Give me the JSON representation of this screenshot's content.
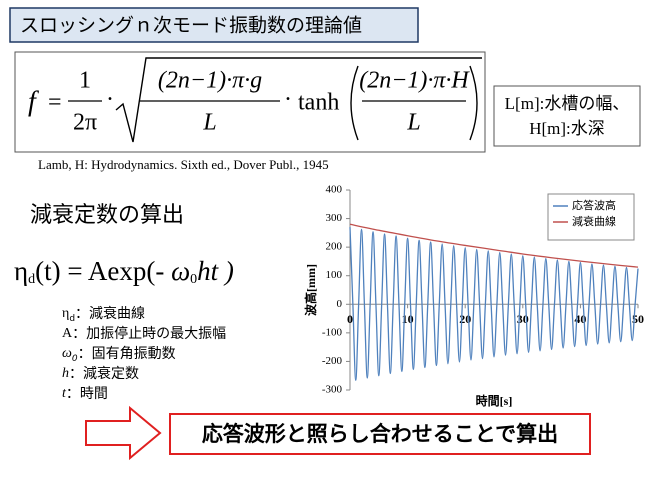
{
  "header": {
    "title": "スロッシングｎ次モード振動数の理論値"
  },
  "formula": {
    "lhs": "f",
    "eq": "=",
    "num1": "1",
    "den1": "2π",
    "dot": "·",
    "num2": "(2n−1)·π·g",
    "den2": "L",
    "tanh": "tanh",
    "num3": "(2n−1)·π·H",
    "den3": "L"
  },
  "side_box": {
    "line1": "L[m]:水槽の幅、",
    "line2": "H[m]:水深"
  },
  "reference": "Lamb, H: Hydrodynamics. Sixth ed., Dover Publ., 1945",
  "section_title": "減衰定数の算出",
  "decay_formula": {
    "eta": "η",
    "sub": "d",
    "middle": "(t) = Aexp(- ",
    "omega": "ω",
    "sub0": "0",
    "tail": "ht )"
  },
  "definitions": [
    {
      "symbol": "η",
      "sub": "d",
      "text": "：減衰曲線"
    },
    {
      "symbol": "A",
      "text": "：加振停止時の最大振幅"
    },
    {
      "symbol": "ω",
      "sub": "0",
      "text": "：固有角振動数"
    },
    {
      "symbol": "h",
      "text": "：減衰定数"
    },
    {
      "symbol": "t",
      "text": "：時間"
    }
  ],
  "conclusion": "応答波形と照らし合わせることで算出",
  "chart_data": {
    "type": "line",
    "xlabel": "時間[s]",
    "ylabel": "波高[mm]",
    "xlim": [
      0,
      50
    ],
    "xticks": [
      0,
      10,
      20,
      30,
      40,
      50
    ],
    "ylim": [
      -300,
      400
    ],
    "yticks": [
      -300,
      -200,
      -100,
      0,
      100,
      200,
      300,
      400
    ],
    "grid": false,
    "legend": "upper right",
    "series": [
      {
        "name": "応答波高",
        "color": "#4f81bd",
        "x": [
          0,
          0.5,
          1,
          1.5,
          2,
          2.5,
          3,
          3.5,
          4,
          4.5,
          5,
          5.5,
          6,
          6.5,
          7,
          7.5,
          8,
          8.5,
          9,
          9.5,
          10,
          10.5,
          11,
          11.5,
          12,
          12.5,
          13,
          13.5,
          14,
          14.5,
          15,
          15.5,
          16,
          16.5,
          17,
          17.5,
          18,
          18.5,
          19,
          19.5,
          20,
          20.5,
          21,
          21.5,
          22,
          22.5,
          23,
          23.5,
          24,
          24.5,
          25,
          25.5,
          26,
          26.5,
          27,
          27.5,
          28,
          28.5,
          29,
          29.5,
          30,
          30.5,
          31,
          31.5,
          32,
          32.5,
          33,
          33.5,
          34,
          34.5,
          35,
          35.5,
          36,
          36.5,
          37,
          37.5,
          38,
          38.5,
          39,
          39.5,
          40,
          40.5,
          41,
          41.5,
          42,
          42.5,
          43,
          43.5,
          44,
          44.5,
          45,
          45.5,
          46,
          46.5,
          47,
          47.5,
          48,
          48.5,
          49,
          49.5,
          50
        ],
        "values": [
          270,
          0,
          -266,
          0,
          262,
          0,
          -258,
          0,
          254,
          0,
          -250,
          0,
          246,
          0,
          -242,
          0,
          239,
          0,
          -235,
          0,
          231,
          0,
          -228,
          0,
          224,
          0,
          -221,
          0,
          218,
          0,
          -214,
          0,
          211,
          0,
          -208,
          0,
          205,
          0,
          -202,
          0,
          198,
          0,
          -195,
          0,
          192,
          0,
          -190,
          0,
          187,
          0,
          -184,
          0,
          181,
          0,
          -178,
          0,
          176,
          0,
          -173,
          0,
          170,
          0,
          -168,
          0,
          165,
          0,
          -163,
          0,
          160,
          0,
          -158,
          0,
          155,
          0,
          -153,
          0,
          150,
          0,
          -148,
          0,
          146,
          0,
          -144,
          0,
          141,
          0,
          -139,
          0,
          137,
          0,
          -135,
          0,
          133,
          0,
          -131,
          0,
          129,
          0,
          -127,
          0,
          125
        ]
      },
      {
        "name": "減衰曲線",
        "color": "#c0504d",
        "x": [
          0,
          5,
          10,
          15,
          20,
          25,
          30,
          35,
          40,
          45,
          50
        ],
        "values": [
          280,
          259,
          240,
          222,
          206,
          191,
          176,
          163,
          151,
          140,
          130
        ]
      }
    ]
  }
}
